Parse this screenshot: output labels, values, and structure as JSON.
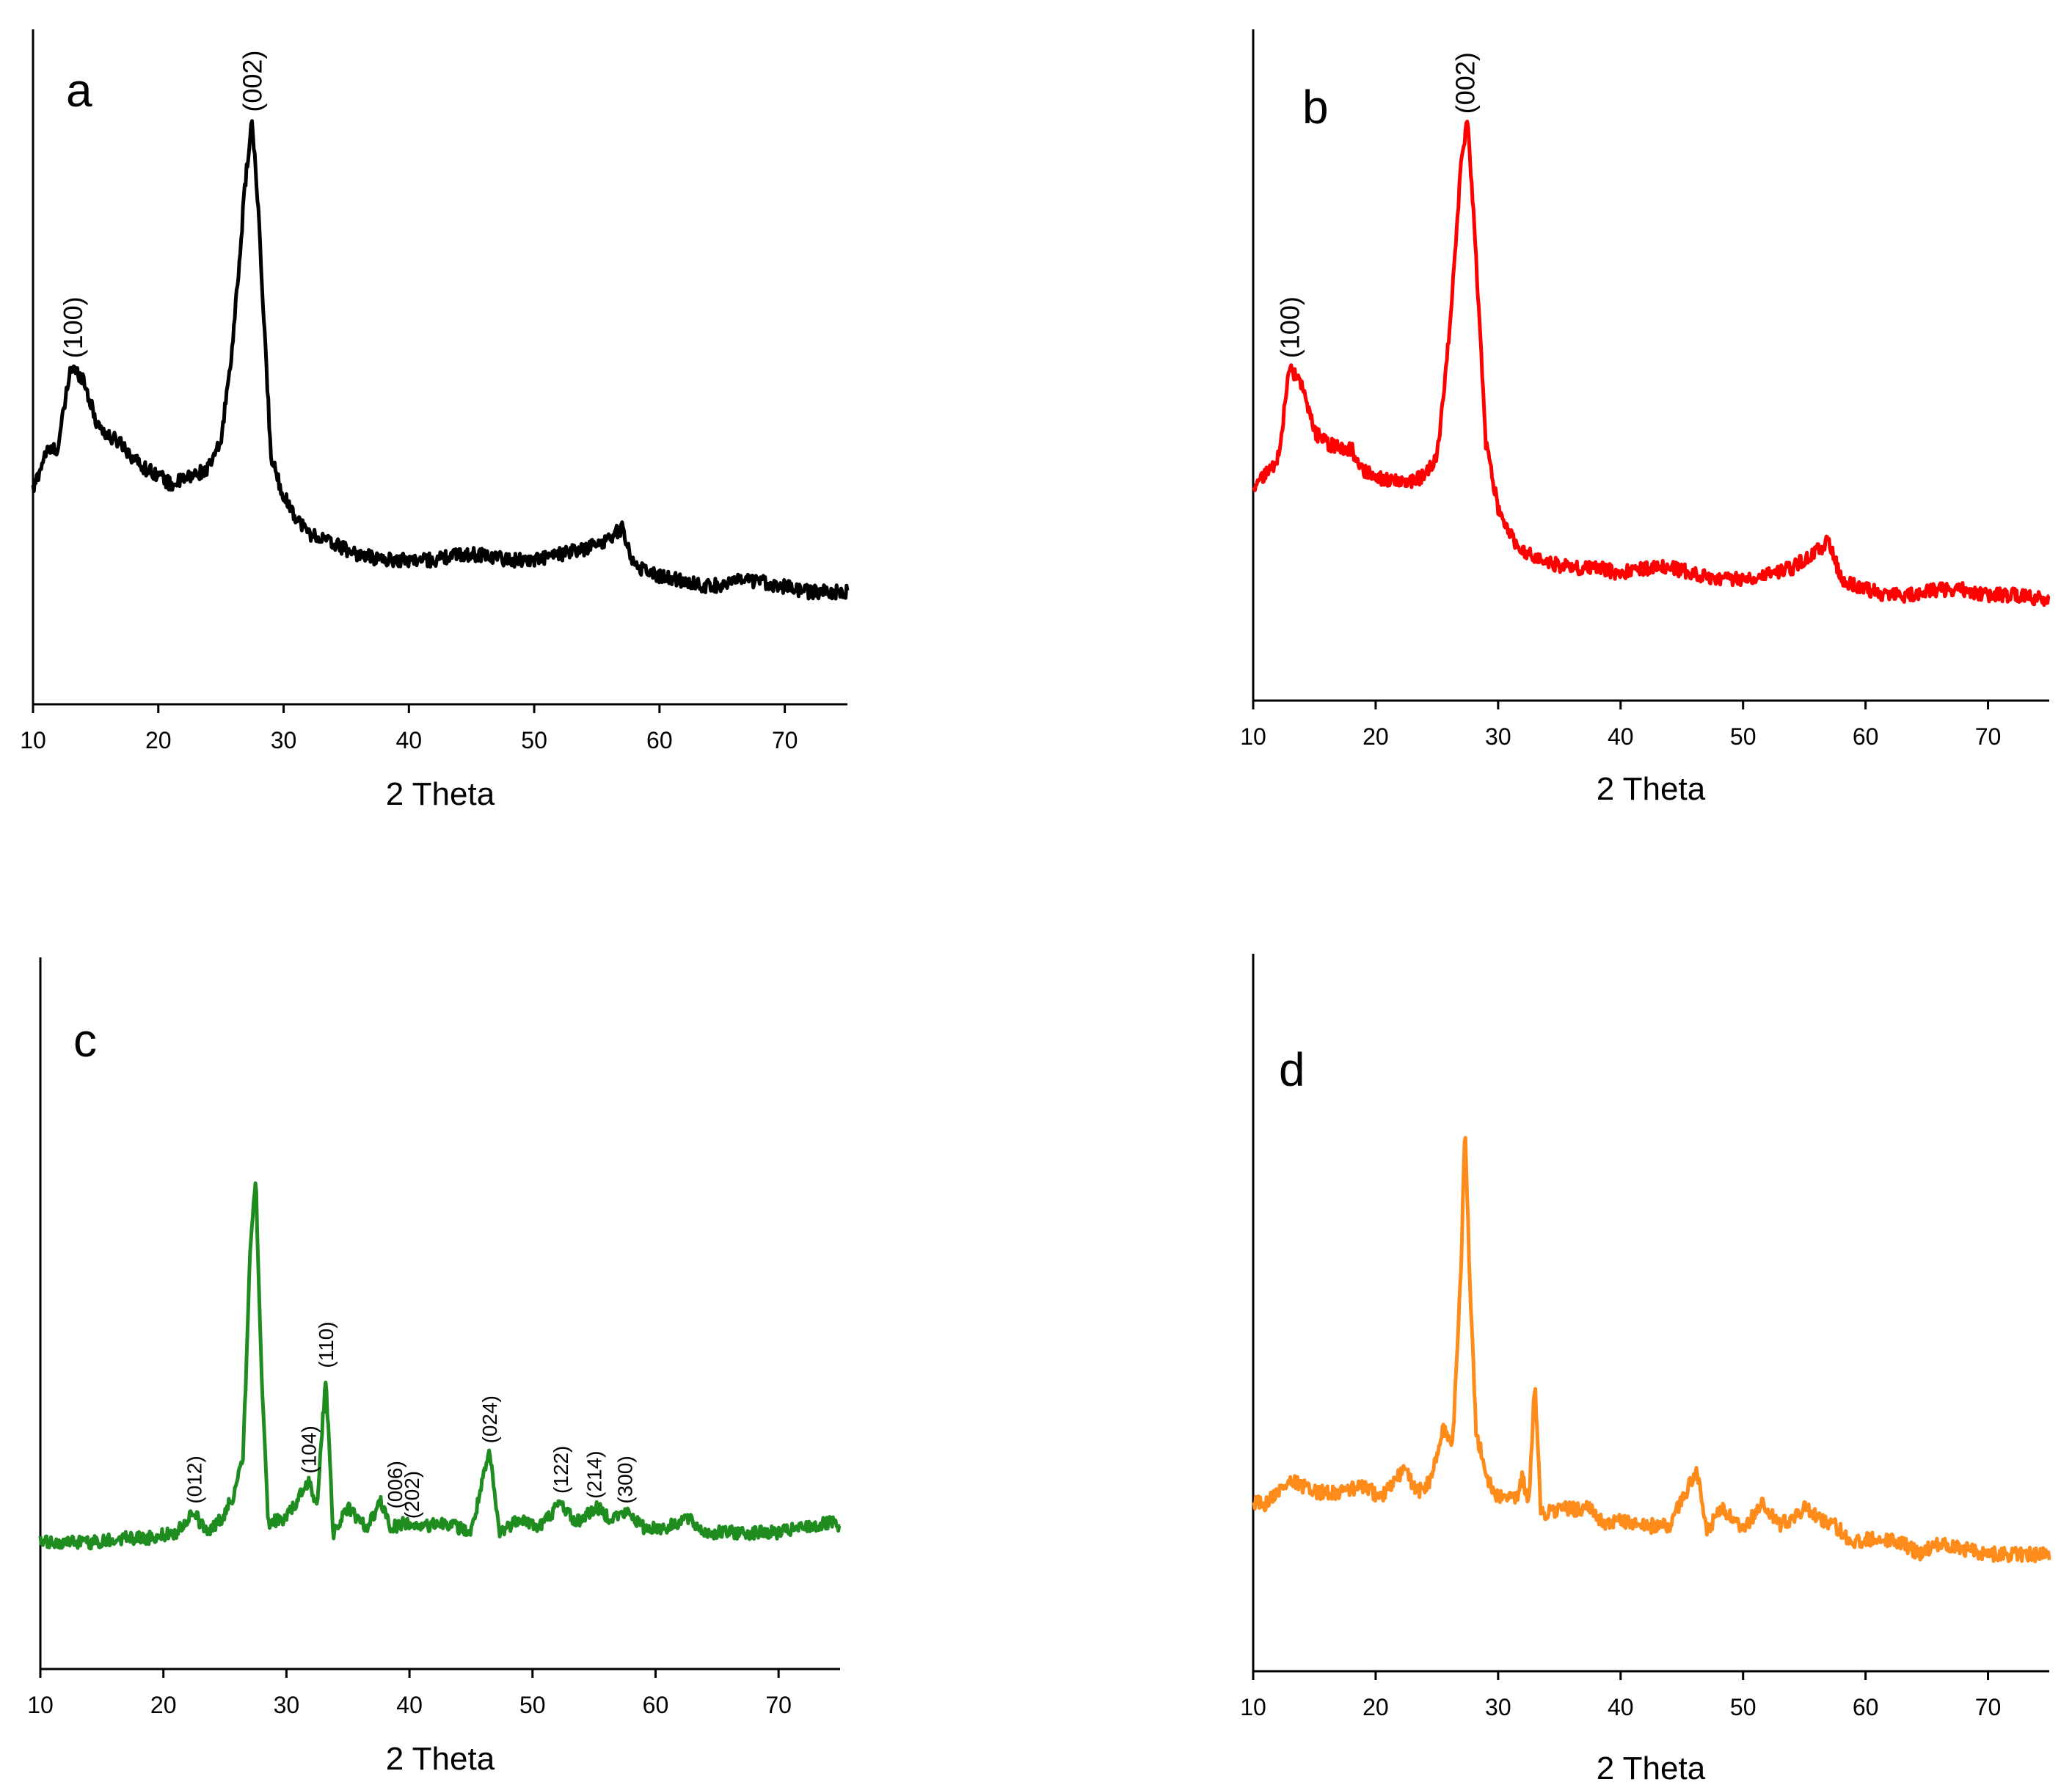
{
  "figure": {
    "panels": [
      "a",
      "b",
      "c",
      "d"
    ]
  },
  "chart_data": [
    {
      "panel": "a",
      "type": "line",
      "color": "#000000",
      "xlabel": "2 Theta",
      "ylabel": "",
      "xlim": [
        10,
        75
      ],
      "ylim": [
        0,
        100
      ],
      "xticks": [
        10,
        20,
        30,
        40,
        50,
        60,
        70
      ],
      "x": [
        10,
        11,
        12,
        13,
        14,
        15,
        16,
        17,
        18,
        19,
        20,
        21,
        22,
        23,
        24,
        25,
        26,
        27,
        27.5,
        28,
        29,
        30,
        31,
        32,
        34,
        36,
        38,
        40,
        42,
        44,
        46,
        48,
        50,
        52,
        54,
        56,
        57,
        58,
        60,
        62,
        64,
        66,
        68,
        70,
        72,
        75
      ],
      "y": [
        29,
        36,
        37,
        52,
        50,
        42,
        39,
        38,
        35,
        33,
        32,
        30,
        31,
        32,
        33,
        38,
        58,
        88,
        98,
        80,
        35,
        28,
        24,
        21,
        19,
        17,
        16,
        16,
        16,
        17,
        17,
        16,
        16,
        17,
        18,
        20,
        22,
        15,
        13,
        12,
        11,
        12,
        12,
        11,
        10,
        10
      ],
      "annotations": [
        {
          "text": "(100)",
          "x": 13.2,
          "y": 52
        },
        {
          "text": "(002)",
          "x": 27.5,
          "y": 98
        }
      ]
    },
    {
      "panel": "b",
      "type": "line",
      "color": "#ff0000",
      "xlabel": "2 Theta",
      "ylabel": "",
      "xlim": [
        10,
        75
      ],
      "ylim": [
        0,
        100
      ],
      "xticks": [
        10,
        20,
        30,
        40,
        50,
        60,
        70
      ],
      "x": [
        10,
        11,
        12,
        13,
        14,
        15,
        16,
        17,
        18,
        19,
        20,
        21,
        22,
        23,
        24,
        25,
        26,
        27,
        27.5,
        28,
        29,
        30,
        31,
        32,
        34,
        36,
        38,
        40,
        42,
        44,
        46,
        48,
        50,
        52,
        54,
        56,
        57,
        58,
        60,
        62,
        64,
        66,
        68,
        70,
        72,
        75
      ],
      "y": [
        30,
        32,
        35,
        52,
        48,
        40,
        38,
        37,
        37,
        33,
        32,
        31,
        31,
        31,
        32,
        35,
        58,
        90,
        97,
        80,
        38,
        26,
        21,
        18,
        16,
        15,
        15,
        14,
        15,
        15,
        14,
        13,
        13,
        14,
        15,
        18,
        20,
        13,
        11,
        10,
        10,
        11,
        11,
        10,
        10,
        9
      ],
      "annotations": [
        {
          "text": "(100)",
          "x": 13,
          "y": 52
        },
        {
          "text": "(002)",
          "x": 27.3,
          "y": 97
        }
      ]
    },
    {
      "panel": "c",
      "type": "line",
      "color": "#1e8c1e",
      "xlabel": "2 Theta",
      "ylabel": "",
      "xlim": [
        10,
        75
      ],
      "ylim": [
        0,
        100
      ],
      "xticks": [
        10,
        20,
        30,
        40,
        50,
        60,
        70
      ],
      "x": [
        10,
        14,
        17,
        19,
        21,
        22.5,
        23.5,
        24.8,
        25.8,
        26.5,
        27,
        27.5,
        28,
        28.5,
        30,
        31.8,
        32.5,
        33.2,
        33.8,
        35,
        36.5,
        37.7,
        38.5,
        39.8,
        41,
        43,
        45,
        46.5,
        47.3,
        49,
        50.5,
        52.3,
        53.5,
        55.2,
        56.3,
        57.8,
        59,
        61,
        62.5,
        64,
        66,
        68,
        70,
        72,
        74.5,
        75
      ],
      "y": [
        12,
        12,
        13,
        13,
        14,
        18,
        14,
        17,
        22,
        30,
        67,
        85,
        45,
        16,
        17,
        24,
        20,
        45,
        14,
        19,
        15,
        20,
        15,
        16,
        15,
        16,
        14,
        30,
        14,
        17,
        15,
        20,
        16,
        19,
        17,
        18,
        15,
        15,
        17,
        14,
        14,
        14,
        14,
        15,
        16,
        14
      ],
      "annotations": [
        {
          "text": "(012)",
          "x": 22.5,
          "y": 18
        },
        {
          "text": "(104)",
          "x": 31.8,
          "y": 24
        },
        {
          "text": "(110)",
          "x": 33.2,
          "y": 45
        },
        {
          "text": "(006)",
          "x": 38.8,
          "y": 17
        },
        {
          "text": "(202)",
          "x": 40.2,
          "y": 15
        },
        {
          "text": "(024)",
          "x": 46.5,
          "y": 30
        },
        {
          "text": "(122)",
          "x": 52.3,
          "y": 20
        },
        {
          "text": "(214)",
          "x": 55.0,
          "y": 19
        },
        {
          "text": "(300)",
          "x": 57.5,
          "y": 18
        }
      ]
    },
    {
      "panel": "d",
      "type": "line",
      "color": "#ff8c1a",
      "xlabel": "2 Theta",
      "ylabel": "",
      "xlim": [
        10,
        75
      ],
      "ylim": [
        0,
        100
      ],
      "xticks": [
        10,
        20,
        30,
        40,
        50,
        60,
        70
      ],
      "x": [
        10,
        11,
        13,
        15,
        17,
        19,
        20.5,
        22.3,
        23.5,
        24.5,
        25.5,
        26.3,
        27,
        27.3,
        27.7,
        28.2,
        29,
        30,
        31.5,
        32,
        32.5,
        33,
        33.5,
        35,
        37.5,
        39,
        40,
        42,
        44,
        46.2,
        47,
        48.3,
        50,
        51.5,
        53,
        55,
        57.5,
        59,
        61,
        63,
        64.5,
        66,
        68,
        70,
        72,
        75
      ],
      "y": [
        17,
        17,
        21,
        19,
        19,
        20,
        18,
        23,
        19,
        21,
        30,
        28,
        60,
        85,
        55,
        30,
        22,
        18,
        18,
        22,
        16,
        39,
        15,
        16,
        16,
        13,
        14,
        13,
        13,
        23,
        12,
        16,
        12,
        17,
        13,
        16,
        13,
        10,
        11,
        10,
        8,
        10,
        9,
        8,
        8,
        8
      ],
      "annotations": []
    }
  ]
}
